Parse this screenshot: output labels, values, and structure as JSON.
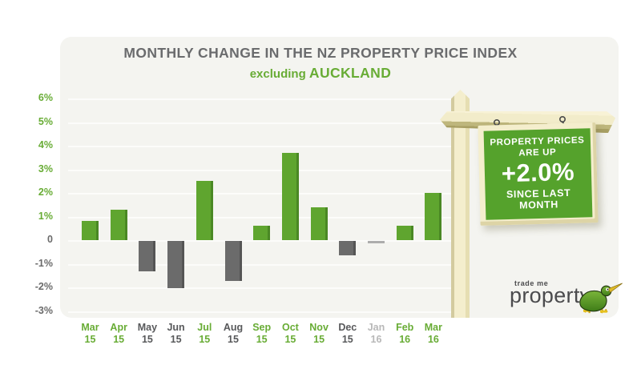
{
  "header": {
    "title": "MONTHLY CHANGE IN THE NZ PROPERTY PRICE INDEX",
    "subtitle_prefix": "excluding",
    "subtitle_emphasis": "AUCKLAND"
  },
  "chart_data": {
    "type": "bar",
    "title": "MONTHLY CHANGE IN THE NZ PROPERTY PRICE INDEX",
    "subtitle": "excluding AUCKLAND",
    "categories": [
      "Mar 15",
      "Apr 15",
      "May 15",
      "Jun 15",
      "Jul 15",
      "Aug 15",
      "Sep 15",
      "Oct 15",
      "Nov 15",
      "Dec 15",
      "Jan 16",
      "Feb 16",
      "Mar 16"
    ],
    "values": [
      0.8,
      1.3,
      -1.3,
      -2.0,
      2.5,
      -1.7,
      0.6,
      3.7,
      1.4,
      -0.6,
      -0.1,
      0.6,
      2.0
    ],
    "bar_states": [
      "pos",
      "pos",
      "neg",
      "neg",
      "pos",
      "neg",
      "pos",
      "pos",
      "pos",
      "neg",
      "flat",
      "pos",
      "pos"
    ],
    "ytick_labels": [
      "6%",
      "5%",
      "4%",
      "3%",
      "2%",
      "1%",
      "0",
      "-1%",
      "-2%",
      "-3%"
    ],
    "ytick_values": [
      6,
      5,
      4,
      3,
      2,
      1,
      0,
      -1,
      -2,
      -3
    ],
    "ylim": [
      -3,
      6
    ],
    "xlabel": "",
    "ylabel": "",
    "grid": true,
    "legend": false
  },
  "sign": {
    "line1": "PROPERTY PRICES",
    "line2": "ARE UP",
    "value": "+2.0%",
    "line3": "SINCE LAST MONTH"
  },
  "logo": {
    "brand_small": "trade me",
    "brand_large": "property",
    "icon": "kiwi-bird-icon"
  },
  "colors": {
    "positive_bar": "#5FA52F",
    "positive_bar_edge": "#4A8824",
    "negative_bar": "#6B6B6B",
    "negative_bar_edge": "#555555",
    "flat_bar": "#ADADAD",
    "tick_green": "#68AC35",
    "tick_gray": "#6B6B6B",
    "label_flat": "#B8B8B8",
    "title_gray": "#6A6B6D",
    "panel_bg": "#F4F4F0",
    "gridline": "#FCFCFA",
    "sign_green": "#55A22C",
    "sign_cream": "#F4EECD"
  }
}
